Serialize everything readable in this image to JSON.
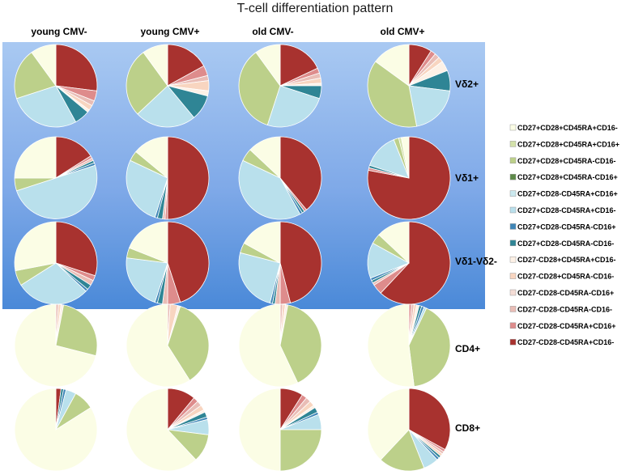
{
  "chart_data": {
    "type": "pie",
    "title": "T-cell differentiation pattern",
    "columns": [
      "young CMV-",
      "young CMV+",
      "old CMV-",
      "old CMV+"
    ],
    "rows": [
      "Vδ2+",
      "Vδ1+",
      "Vδ1-Vδ2-",
      "CD4+",
      "CD8+"
    ],
    "categories": [
      "CD27+CD28+CD45RA+CD16-",
      "CD27+CD28+CD45RA+CD16+",
      "CD27+CD28+CD45RA-CD16-",
      "CD27+CD28+CD45RA-CD16+",
      "CD27+CD28-CD45RA+CD16+",
      "CD27+CD28-CD45RA+CD16-",
      "CD27+CD28-CD45RA-CD16+",
      "CD27+CD28-CD45RA-CD16-",
      "CD27-CD28+CD45RA+CD16-",
      "CD27-CD28+CD45RA-CD16-",
      "CD27-CD28-CD45RA-CD16+",
      "CD27-CD28-CD45RA-CD16-",
      "CD27-CD28-CD45RA+CD16+",
      "CD27-CD28-CD45RA+CD16-"
    ],
    "colors": [
      "#fbfde5",
      "#d3e1a9",
      "#bcd08a",
      "#5d8a48",
      "#cbe9ef",
      "#b9e0ec",
      "#3f86b7",
      "#2f8595",
      "#fdf1e6",
      "#f8d5c0",
      "#f5ddd6",
      "#e9bdb6",
      "#de8c8c",
      "#a8322f"
    ],
    "legend_position": "right",
    "series": [
      {
        "row": "Vδ2+",
        "column": "young CMV-",
        "values": [
          10,
          0,
          20,
          0,
          0,
          28,
          0,
          6,
          1,
          2,
          0,
          2,
          4,
          27
        ]
      },
      {
        "row": "Vδ2+",
        "column": "young CMV+",
        "values": [
          10,
          0,
          27,
          0,
          0,
          24,
          0,
          10,
          2,
          4,
          0,
          2,
          4,
          17
        ]
      },
      {
        "row": "Vδ2+",
        "column": "old CMV-",
        "values": [
          10,
          0,
          35,
          0,
          0,
          25,
          0,
          5,
          1,
          2,
          0,
          2,
          2,
          18
        ]
      },
      {
        "row": "Vδ2+",
        "column": "old CMV+",
        "values": [
          15,
          0,
          38,
          0,
          0,
          20,
          0,
          8,
          4,
          2,
          0,
          2,
          2,
          9
        ]
      },
      {
        "row": "Vδ1+",
        "column": "young CMV-",
        "values": [
          25,
          0,
          5,
          0,
          0,
          50,
          1,
          1,
          0,
          0,
          0,
          1,
          1,
          16
        ]
      },
      {
        "row": "Vδ1+",
        "column": "young CMV+",
        "values": [
          14,
          0,
          4,
          0,
          0,
          27,
          1,
          2,
          0,
          0,
          0,
          1,
          1,
          50
        ]
      },
      {
        "row": "Vδ1+",
        "column": "old CMV-",
        "values": [
          13,
          0,
          5,
          0,
          0,
          40,
          1,
          1,
          0,
          0,
          0,
          0,
          1,
          39
        ]
      },
      {
        "row": "Vδ1+",
        "column": "old CMV+",
        "values": [
          3,
          1,
          2,
          0,
          0,
          14,
          0,
          1,
          0,
          0,
          0,
          0,
          1,
          78
        ]
      },
      {
        "row": "Vδ1-Vδ2-",
        "column": "young CMV-",
        "values": [
          28,
          0,
          6,
          0,
          0,
          29,
          1,
          2,
          0,
          0,
          0,
          2,
          2,
          30
        ]
      },
      {
        "row": "Vδ1-Vδ2-",
        "column": "young CMV+",
        "values": [
          19,
          0,
          4,
          0,
          0,
          22,
          1,
          2,
          0,
          0,
          0,
          2,
          5,
          45
        ]
      },
      {
        "row": "Vδ1-Vδ2-",
        "column": "old CMV-",
        "values": [
          17,
          0,
          4,
          0,
          0,
          25,
          1,
          1,
          0,
          0,
          0,
          2,
          4,
          46
        ]
      },
      {
        "row": "Vδ1-Vδ2-",
        "column": "old CMV+",
        "values": [
          13,
          0,
          4,
          0,
          0,
          14,
          1,
          1,
          0,
          0,
          0,
          1,
          4,
          62
        ]
      },
      {
        "row": "CD4+",
        "column": "young CMV-",
        "values": [
          71,
          0,
          26,
          0,
          0,
          0,
          0,
          0,
          1,
          1,
          0,
          1,
          0,
          0
        ]
      },
      {
        "row": "CD4+",
        "column": "young CMV+",
        "values": [
          59,
          0,
          36,
          0,
          0,
          0,
          0,
          0,
          1,
          3,
          0,
          1,
          0,
          0
        ]
      },
      {
        "row": "CD4+",
        "column": "old CMV-",
        "values": [
          57,
          0,
          40,
          0,
          0,
          0,
          0,
          0,
          1,
          1,
          0,
          1,
          0,
          0
        ]
      },
      {
        "row": "CD4+",
        "column": "old CMV+",
        "values": [
          52,
          0,
          41,
          0,
          0,
          1,
          1,
          1,
          1,
          1,
          0,
          1,
          1,
          0
        ]
      },
      {
        "row": "CD8+",
        "column": "young CMV-",
        "values": [
          84,
          0,
          8,
          0,
          0,
          4,
          1,
          1,
          0,
          0,
          0,
          0,
          0,
          2
        ]
      },
      {
        "row": "CD8+",
        "column": "young CMV+",
        "values": [
          62,
          0,
          11,
          0,
          0,
          6,
          1,
          2,
          1,
          2,
          0,
          2,
          2,
          11
        ]
      },
      {
        "row": "CD8+",
        "column": "old CMV-",
        "values": [
          50,
          0,
          25,
          0,
          0,
          6,
          1,
          2,
          1,
          2,
          0,
          2,
          2,
          9
        ]
      },
      {
        "row": "CD8+",
        "column": "old CMV+",
        "values": [
          38,
          0,
          18,
          0,
          0,
          6,
          1,
          1,
          0,
          1,
          0,
          1,
          1,
          33
        ]
      }
    ]
  }
}
